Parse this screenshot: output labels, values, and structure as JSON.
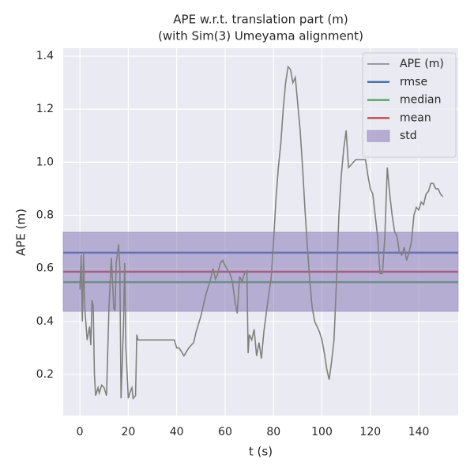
{
  "chart_data": {
    "type": "line",
    "title": "APE w.r.t. translation part (m)",
    "subtitle": "(with Sim(3) Umeyama alignment)",
    "x_label": "t (s)",
    "y_label": "APE (m)",
    "xlim": [
      -6.9,
      156.3
    ],
    "ylim": [
      0.045,
      1.43
    ],
    "xticks": [
      0,
      20,
      40,
      60,
      80,
      100,
      120,
      140
    ],
    "yticks": [
      0.2,
      0.4,
      0.6,
      0.8,
      {
        "value": 1,
        "label": "1.0"
      },
      1.2,
      1.4
    ],
    "grid": true,
    "legend": "upper right",
    "series": [
      {
        "name": "APE (m)",
        "color": "#808080",
        "style": "line",
        "x": [
          0,
          0.5,
          1,
          1.5,
          2,
          3,
          4,
          4.5,
          5,
          5.5,
          6,
          6.5,
          7.5,
          8,
          9,
          10,
          11,
          12,
          13,
          14,
          14.5,
          15,
          16,
          16.5,
          17,
          18,
          18.5,
          19,
          20,
          21,
          21.5,
          22,
          23,
          23.5,
          24,
          30,
          35,
          39,
          40,
          41,
          43,
          45,
          47,
          48,
          50,
          52,
          54,
          55,
          56,
          57,
          58,
          59,
          60,
          62,
          63,
          64,
          65,
          66,
          67,
          68,
          69,
          69.5,
          70,
          71,
          72,
          73,
          74,
          75,
          76,
          77,
          78,
          79,
          80,
          81,
          82,
          83,
          84,
          85,
          86,
          87,
          88,
          89,
          90,
          91,
          92,
          93,
          94,
          95,
          96,
          97,
          98,
          99,
          100,
          101,
          102,
          103,
          104,
          105,
          106,
          107,
          108,
          109,
          110,
          111,
          112,
          114,
          116,
          118,
          119,
          120,
          121,
          122,
          123,
          124,
          125,
          126,
          127,
          128,
          129,
          130,
          131,
          132,
          133,
          134,
          135,
          136,
          137,
          138,
          139,
          140,
          141,
          142,
          143,
          144,
          145,
          146,
          147,
          148,
          149,
          150
        ],
        "values": [
          0.52,
          0.65,
          0.4,
          0.66,
          0.45,
          0.33,
          0.38,
          0.31,
          0.48,
          0.46,
          0.2,
          0.12,
          0.15,
          0.13,
          0.16,
          0.15,
          0.12,
          0.45,
          0.64,
          0.45,
          0.44,
          0.62,
          0.69,
          0.6,
          0.11,
          0.38,
          0.62,
          0.3,
          0.11,
          0.14,
          0.15,
          0.11,
          0.12,
          0.35,
          0.33,
          0.33,
          0.33,
          0.33,
          0.3,
          0.3,
          0.27,
          0.3,
          0.32,
          0.36,
          0.42,
          0.5,
          0.56,
          0.6,
          0.56,
          0.58,
          0.62,
          0.63,
          0.61,
          0.58,
          0.55,
          0.48,
          0.43,
          0.57,
          0.55,
          0.58,
          0.59,
          0.28,
          0.35,
          0.33,
          0.37,
          0.27,
          0.32,
          0.26,
          0.36,
          0.43,
          0.5,
          0.56,
          0.7,
          0.86,
          0.98,
          1.07,
          1.2,
          1.3,
          1.36,
          1.35,
          1.3,
          1.32,
          1.22,
          1.12,
          0.98,
          0.82,
          0.68,
          0.55,
          0.45,
          0.4,
          0.38,
          0.36,
          0.33,
          0.28,
          0.22,
          0.18,
          0.25,
          0.33,
          0.55,
          0.8,
          0.95,
          1.05,
          1.12,
          0.98,
          0.99,
          1.01,
          1.01,
          1.01,
          0.95,
          0.9,
          0.88,
          0.8,
          0.72,
          0.58,
          0.58,
          0.72,
          0.98,
          0.88,
          0.8,
          0.74,
          0.72,
          0.66,
          0.65,
          0.68,
          0.63,
          0.66,
          0.7,
          0.8,
          0.83,
          0.82,
          0.85,
          0.84,
          0.88,
          0.89,
          0.92,
          0.92,
          0.9,
          0.9,
          0.88,
          0.87
        ]
      },
      {
        "name": "rmse",
        "color": "#4c72b0",
        "style": "hline",
        "values": [
          0.659
        ]
      },
      {
        "name": "median",
        "color": "#55a868",
        "style": "hline",
        "values": [
          0.548
        ]
      },
      {
        "name": "mean",
        "color": "#c44e52",
        "style": "hline",
        "values": [
          0.587
        ]
      },
      {
        "name": "std",
        "color": "#8172b2",
        "style": "band",
        "values": [
          0.438,
          0.736
        ]
      }
    ]
  }
}
